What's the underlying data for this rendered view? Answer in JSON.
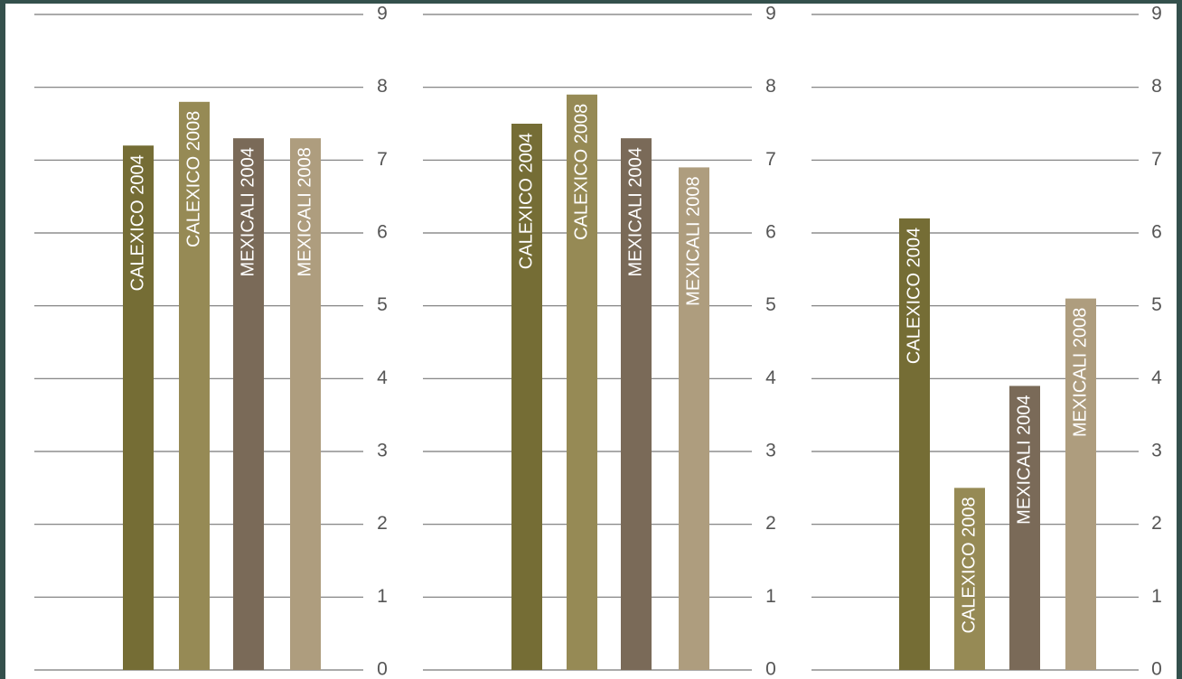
{
  "chart_data": [
    {
      "type": "bar",
      "categories": [
        "CALEXICO 2004",
        "CALEXICO 2008",
        "MEXICALI 2004",
        "MEXICALI 2008"
      ],
      "values": [
        7.2,
        7.8,
        7.3,
        7.3
      ],
      "colors": [
        "#756d35",
        "#968a55",
        "#7a6a58",
        "#ae9d7e"
      ],
      "ylim": [
        0,
        9
      ],
      "yticks": [
        0,
        1,
        2,
        3,
        4,
        5,
        6,
        7,
        8,
        9
      ],
      "grid": true
    },
    {
      "type": "bar",
      "categories": [
        "CALEXICO 2004",
        "CALEXICO 2008",
        "MEXICALI 2004",
        "MEXICALI 2008"
      ],
      "values": [
        7.5,
        7.9,
        7.3,
        6.9
      ],
      "colors": [
        "#756d35",
        "#968a55",
        "#7a6a58",
        "#ae9d7e"
      ],
      "ylim": [
        0,
        9
      ],
      "yticks": [
        0,
        1,
        2,
        3,
        4,
        5,
        6,
        7,
        8,
        9
      ],
      "grid": true
    },
    {
      "type": "bar",
      "categories": [
        "CALEXICO 2004",
        "CALEXICO 2008",
        "MEXICALI 2004",
        "MEXICALI 2008"
      ],
      "values": [
        6.2,
        2.5,
        3.9,
        5.1
      ],
      "colors": [
        "#756d35",
        "#968a55",
        "#7a6a58",
        "#ae9d7e"
      ],
      "ylim": [
        0,
        9
      ],
      "yticks": [
        0,
        1,
        2,
        3,
        4,
        5,
        6,
        7,
        8,
        9
      ],
      "grid": true
    }
  ]
}
